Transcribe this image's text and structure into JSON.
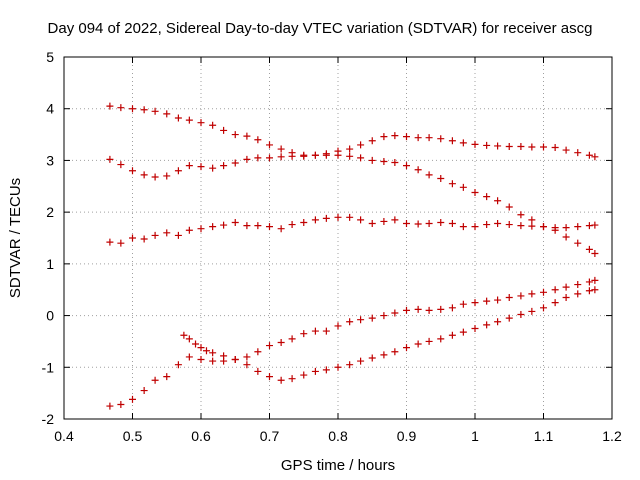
{
  "chart_data": {
    "type": "scatter",
    "title": "Day 094 of 2022, Sidereal Day-to-day VTEC variation (SDTVAR) for receiver ascg",
    "xlabel": "GPS time / hours",
    "ylabel": "SDTVAR / TECUs",
    "xlim": [
      0.4,
      1.2
    ],
    "ylim": [
      -2,
      5
    ],
    "xticks": [
      "0.4",
      "0.5",
      "0.6",
      "0.7",
      "0.8",
      "0.9",
      "1",
      "1.1",
      "1.2"
    ],
    "yticks": [
      "-2",
      "-1",
      "0",
      "1",
      "2",
      "3",
      "4",
      "5"
    ],
    "grid": true,
    "marker": "plus",
    "color": "#c00000",
    "series": [
      {
        "name": "series-1",
        "x": [
          0.467,
          0.483,
          0.5,
          0.517,
          0.533,
          0.55,
          0.567,
          0.583,
          0.6,
          0.617,
          0.633,
          0.65,
          0.667,
          0.683,
          0.7,
          0.717,
          0.733,
          0.75,
          0.767,
          0.783,
          0.8,
          0.817,
          0.833,
          0.85,
          0.867,
          0.883,
          0.9,
          0.917,
          0.933,
          0.95,
          0.967,
          0.983,
          1.0,
          1.017,
          1.033,
          1.05,
          1.067,
          1.083,
          1.1,
          1.117,
          1.133,
          1.15,
          1.167,
          1.175
        ],
        "y": [
          4.05,
          4.02,
          4.0,
          3.98,
          3.95,
          3.9,
          3.82,
          3.78,
          3.73,
          3.68,
          3.58,
          3.5,
          3.47,
          3.4,
          3.3,
          3.22,
          3.15,
          3.1,
          3.1,
          3.13,
          3.18,
          3.22,
          3.3,
          3.38,
          3.46,
          3.48,
          3.46,
          3.44,
          3.44,
          3.42,
          3.38,
          3.34,
          3.31,
          3.29,
          3.28,
          3.27,
          3.27,
          3.26,
          3.26,
          3.25,
          3.2,
          3.15,
          3.1,
          3.07
        ]
      },
      {
        "name": "series-2",
        "x": [
          0.467,
          0.483,
          0.5,
          0.517,
          0.533,
          0.55,
          0.567,
          0.583,
          0.6,
          0.617,
          0.633,
          0.65,
          0.667,
          0.683,
          0.7,
          0.717,
          0.733,
          0.75,
          0.767,
          0.783,
          0.8,
          0.817,
          0.833,
          0.85,
          0.867,
          0.883,
          0.9,
          0.917,
          0.933,
          0.95,
          0.967,
          0.983,
          1.0,
          1.017,
          1.033,
          1.05,
          1.067,
          1.083,
          1.1,
          1.117,
          1.133,
          1.15,
          1.167,
          1.175
        ],
        "y": [
          3.02,
          2.92,
          2.8,
          2.72,
          2.68,
          2.7,
          2.8,
          2.9,
          2.88,
          2.85,
          2.9,
          2.95,
          3.02,
          3.05,
          3.05,
          3.07,
          3.08,
          3.08,
          3.1,
          3.1,
          3.1,
          3.08,
          3.05,
          3.0,
          2.98,
          2.96,
          2.9,
          2.82,
          2.72,
          2.65,
          2.55,
          2.48,
          2.38,
          2.3,
          2.22,
          2.1,
          1.95,
          1.85,
          1.72,
          1.65,
          1.52,
          1.4,
          1.28,
          1.2
        ]
      },
      {
        "name": "series-3",
        "x": [
          0.467,
          0.483,
          0.5,
          0.517,
          0.533,
          0.55,
          0.567,
          0.583,
          0.6,
          0.617,
          0.633,
          0.65,
          0.667,
          0.683,
          0.7,
          0.717,
          0.733,
          0.75,
          0.767,
          0.783,
          0.8,
          0.817,
          0.833,
          0.85,
          0.867,
          0.883,
          0.9,
          0.917,
          0.933,
          0.95,
          0.967,
          0.983,
          1.0,
          1.017,
          1.033,
          1.05,
          1.067,
          1.083,
          1.1,
          1.117,
          1.133,
          1.15,
          1.167,
          1.175
        ],
        "y": [
          1.42,
          1.4,
          1.5,
          1.48,
          1.55,
          1.6,
          1.55,
          1.65,
          1.68,
          1.72,
          1.75,
          1.8,
          1.74,
          1.74,
          1.72,
          1.68,
          1.76,
          1.8,
          1.85,
          1.88,
          1.9,
          1.9,
          1.85,
          1.78,
          1.82,
          1.85,
          1.78,
          1.77,
          1.78,
          1.8,
          1.78,
          1.72,
          1.72,
          1.76,
          1.78,
          1.76,
          1.74,
          1.73,
          1.72,
          1.7,
          1.7,
          1.72,
          1.74,
          1.75
        ]
      },
      {
        "name": "series-4",
        "x": [
          0.467,
          0.483,
          0.5,
          0.517,
          0.533,
          0.55,
          0.567,
          0.583,
          0.6,
          0.617,
          0.633,
          0.65,
          0.667,
          0.683,
          0.7,
          0.717,
          0.733,
          0.75,
          0.767,
          0.783,
          0.8,
          0.817,
          0.833,
          0.85,
          0.867,
          0.883,
          0.9,
          0.917,
          0.933,
          0.95,
          0.967,
          0.983,
          1.0,
          1.017,
          1.033,
          1.05,
          1.067,
          1.083,
          1.1,
          1.117,
          1.133,
          1.15,
          1.167,
          1.175
        ],
        "y": [
          -1.75,
          -1.72,
          -1.62,
          -1.45,
          -1.25,
          -1.18,
          -0.95,
          -0.8,
          -0.85,
          -0.88,
          -0.88,
          -0.85,
          -0.8,
          -0.7,
          -0.58,
          -0.52,
          -0.45,
          -0.35,
          -0.3,
          -0.3,
          -0.2,
          -0.12,
          -0.08,
          -0.05,
          0.0,
          0.05,
          0.1,
          0.12,
          0.1,
          0.12,
          0.15,
          0.22,
          0.25,
          0.28,
          0.3,
          0.35,
          0.38,
          0.42,
          0.45,
          0.5,
          0.55,
          0.6,
          0.65,
          0.68
        ]
      },
      {
        "name": "series-5",
        "x": [
          0.575,
          0.583,
          0.592,
          0.6,
          0.608,
          0.617,
          0.633,
          0.65,
          0.667,
          0.683,
          0.7,
          0.717,
          0.733,
          0.75,
          0.767,
          0.783,
          0.8,
          0.817,
          0.833,
          0.85,
          0.867,
          0.883,
          0.9,
          0.917,
          0.933,
          0.95,
          0.967,
          0.983,
          1.0,
          1.017,
          1.033,
          1.05,
          1.067,
          1.083,
          1.1,
          1.117,
          1.133,
          1.15,
          1.167,
          1.175
        ],
        "y": [
          -0.38,
          -0.45,
          -0.55,
          -0.62,
          -0.68,
          -0.72,
          -0.78,
          -0.85,
          -0.95,
          -1.08,
          -1.18,
          -1.25,
          -1.22,
          -1.15,
          -1.08,
          -1.05,
          -1.0,
          -0.95,
          -0.88,
          -0.82,
          -0.76,
          -0.7,
          -0.62,
          -0.55,
          -0.5,
          -0.45,
          -0.38,
          -0.32,
          -0.25,
          -0.18,
          -0.12,
          -0.05,
          0.02,
          0.08,
          0.15,
          0.25,
          0.35,
          0.42,
          0.48,
          0.5
        ]
      }
    ]
  }
}
